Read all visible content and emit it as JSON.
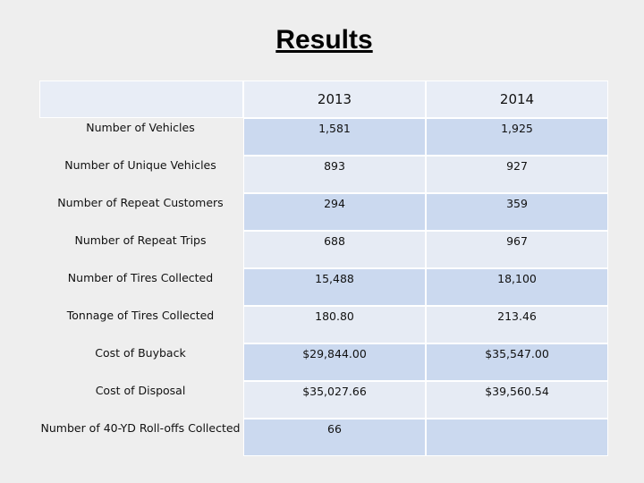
{
  "header": {
    "title": "Results"
  },
  "table": {
    "columns": [
      "2013",
      "2014"
    ],
    "rows": [
      [
        "Number of Vehicles",
        "1,581",
        "1,925"
      ],
      [
        "Number of Unique Vehicles",
        "893",
        "927"
      ],
      [
        "Number of Repeat Customers",
        "294",
        "359"
      ],
      [
        "Number of Repeat Trips",
        "688",
        "967"
      ],
      [
        "Number of Tires Collected",
        "15,488",
        "18,100"
      ],
      [
        "Tonnage of Tires Collected",
        "180.80",
        "213.46"
      ],
      [
        "Cost of Buyback",
        "$29,844.00",
        "$35,547.00"
      ],
      [
        "Cost of Disposal",
        "$35,027.66",
        "$39,560.54"
      ],
      [
        "Number of 40-YD Roll-offs Collected",
        "66"
      ]
    ]
  }
}
